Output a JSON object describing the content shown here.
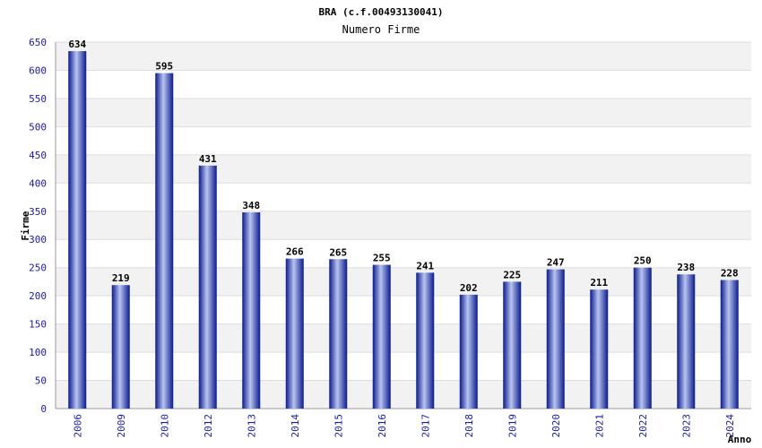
{
  "chart_data": {
    "type": "bar",
    "title": "BRA (c.f.00493130041)",
    "subtitle": "Numero Firme",
    "xlabel": "Anno",
    "ylabel": "Firme",
    "ylim": [
      0,
      650
    ],
    "ytick_step": 50,
    "yticks": [
      "0",
      "50",
      "100",
      "150",
      "200",
      "250",
      "300",
      "350",
      "400",
      "450",
      "500",
      "550",
      "600",
      "650"
    ],
    "grid": true,
    "categories": [
      "2006",
      "2009",
      "2010",
      "2012",
      "2013",
      "2014",
      "2015",
      "2016",
      "2017",
      "2018",
      "2019",
      "2020",
      "2021",
      "2022",
      "2023",
      "2024"
    ],
    "values": [
      634,
      219,
      595,
      431,
      348,
      266,
      265,
      255,
      241,
      202,
      225,
      247,
      211,
      250,
      238,
      228
    ],
    "data_labels": [
      "634",
      "219",
      "595",
      "431",
      "348",
      "266",
      "265",
      "255",
      "241",
      "202",
      "225",
      "247",
      "211",
      "250",
      "238",
      "228"
    ],
    "colors": {
      "bar_dark": "#0a1a8c",
      "bar_light": "#b8c4f0",
      "band": "#f2f2f2",
      "grid": "#dddddd",
      "tick_text": "#1a1aa6"
    }
  }
}
